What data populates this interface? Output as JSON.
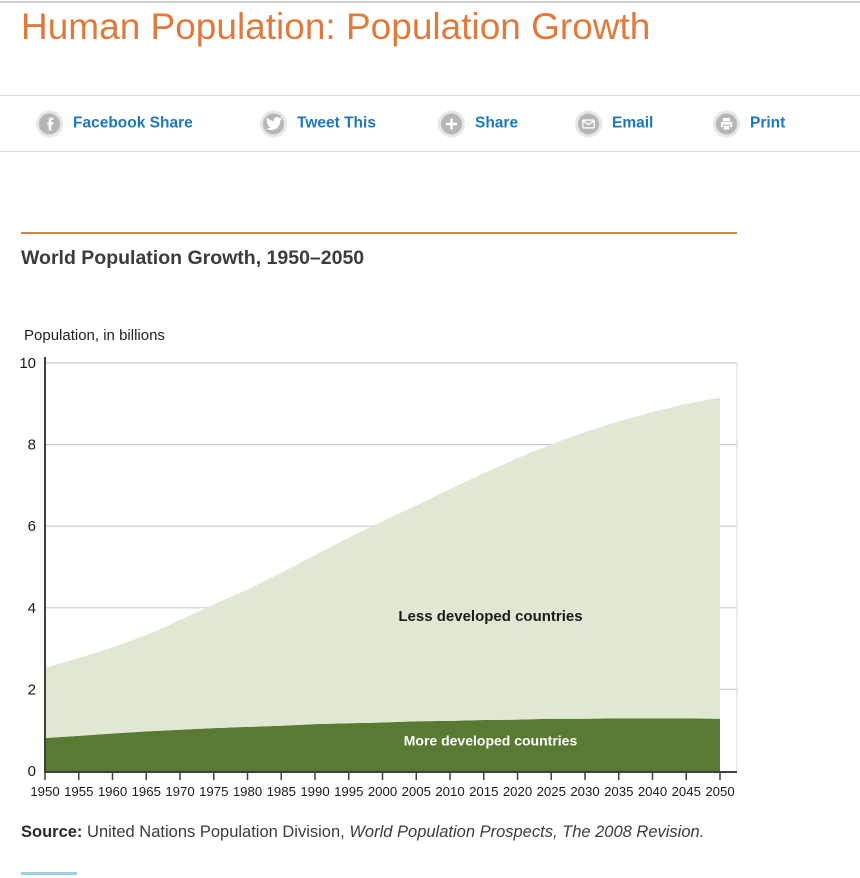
{
  "page": {
    "title": "Human Population: Population Growth"
  },
  "share_bar": {
    "items": [
      {
        "label": "Facebook Share",
        "icon": "facebook-icon"
      },
      {
        "label": "Tweet This",
        "icon": "twitter-icon"
      },
      {
        "label": "Share",
        "icon": "share-plus-icon"
      },
      {
        "label": "Email",
        "icon": "email-icon"
      },
      {
        "label": "Print",
        "icon": "print-icon"
      }
    ]
  },
  "section": {
    "heading": "World Population Growth, 1950–2050"
  },
  "chart_data": {
    "type": "area",
    "stacked": true,
    "title": "World Population Growth, 1950–2050",
    "ylabel": "Population, in billions",
    "xlabel": "",
    "x": [
      1950,
      1955,
      1960,
      1965,
      1970,
      1975,
      1980,
      1985,
      1990,
      1995,
      2000,
      2005,
      2010,
      2015,
      2020,
      2025,
      2030,
      2035,
      2040,
      2045,
      2050
    ],
    "ylim": [
      0,
      10
    ],
    "yticks": [
      0,
      2,
      4,
      6,
      8,
      10
    ],
    "grid": true,
    "legend_position": "inside-area-labels",
    "series": [
      {
        "name": "More developed countries",
        "color": "#587a33",
        "label_color": "#ffffff",
        "label_pos": {
          "year": 2016,
          "value": 0.62
        },
        "values": [
          0.81,
          0.86,
          0.92,
          0.97,
          1.01,
          1.05,
          1.08,
          1.11,
          1.15,
          1.17,
          1.19,
          1.22,
          1.23,
          1.25,
          1.26,
          1.28,
          1.28,
          1.29,
          1.29,
          1.29,
          1.28
        ]
      },
      {
        "name": "Less developed countries",
        "color": "#e0e8d4",
        "label_color": "#1a1a1a",
        "label_pos": {
          "year": 2016,
          "value": 3.68
        },
        "values": [
          1.72,
          1.91,
          2.11,
          2.36,
          2.69,
          3.03,
          3.37,
          3.75,
          4.14,
          4.55,
          4.93,
          5.29,
          5.68,
          6.05,
          6.41,
          6.73,
          7.03,
          7.28,
          7.51,
          7.71,
          7.87
        ]
      }
    ],
    "world_total": [
      2.53,
      2.77,
      3.03,
      3.33,
      3.7,
      4.08,
      4.45,
      4.86,
      5.29,
      5.72,
      6.12,
      6.51,
      6.91,
      7.3,
      7.67,
      8.01,
      8.31,
      8.57,
      8.8,
      9.0,
      9.15
    ]
  },
  "source": {
    "bold": "Source:",
    "text": " United Nations Population Division, ",
    "italic": "World Population Prospects, The 2008 Revision."
  },
  "colors": {
    "accent_orange": "#e0793c",
    "divider_orange": "#cd8b3f",
    "link_blue": "#1a78be",
    "icon_gray": "#b6b6b6",
    "area_light_green": "#e0e8d4",
    "area_dark_green": "#587a33"
  }
}
